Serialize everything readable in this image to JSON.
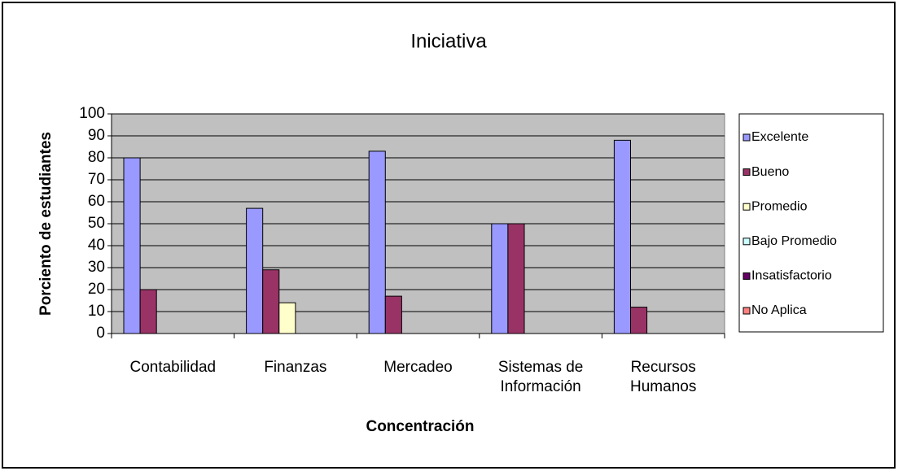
{
  "chart_data": {
    "type": "bar",
    "title": "Iniciativa",
    "y_label": "Porciento de estudiantes",
    "x_label": "Concentración",
    "categories": [
      "Contabilidad",
      "Finanzas",
      "Mercadeo",
      "Sistemas de Información",
      "Recursos Humanos"
    ],
    "series": [
      {
        "name": "Excelente",
        "color": "#9999FF",
        "values": [
          80,
          57,
          83,
          50,
          88
        ]
      },
      {
        "name": "Bueno",
        "color": "#993366",
        "values": [
          20,
          29,
          17,
          50,
          12
        ]
      },
      {
        "name": "Promedio",
        "color": "#FFFFCC",
        "values": [
          0,
          14,
          0,
          0,
          0
        ]
      },
      {
        "name": "Bajo Promedio",
        "color": "#CCFFFF",
        "values": [
          0,
          0,
          0,
          0,
          0
        ]
      },
      {
        "name": "Insatisfactorio",
        "color": "#660066",
        "values": [
          0,
          0,
          0,
          0,
          0
        ]
      },
      {
        "name": "No Aplica",
        "color": "#FF8080",
        "values": [
          0,
          0,
          0,
          0,
          0
        ]
      }
    ],
    "ylim": [
      0,
      100
    ],
    "yticks": [
      0,
      10,
      20,
      30,
      40,
      50,
      60,
      70,
      80,
      90,
      100
    ],
    "grid": true,
    "plot_background": "#C0C0C0",
    "legend": "right"
  }
}
